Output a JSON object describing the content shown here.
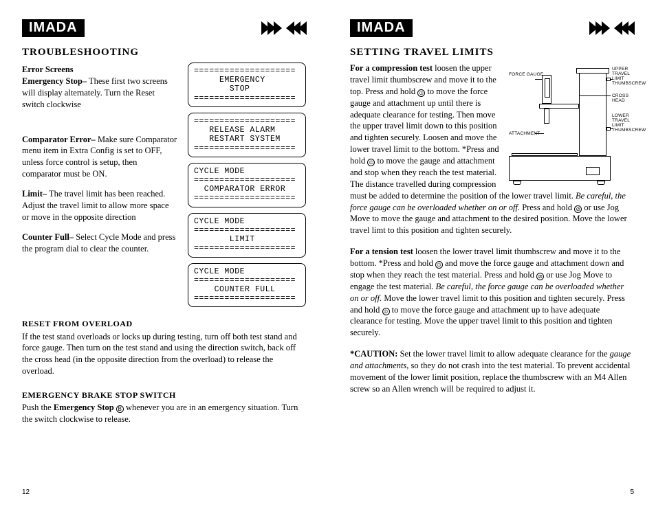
{
  "brand": "IMADA",
  "left": {
    "h1": "TROUBLESHOOTING",
    "h2": "Error Screens",
    "emergency": {
      "label": "Emergency Stop–",
      "text": " These first two screens will display alternately. Turn the Reset switch clockwise"
    },
    "comparator": {
      "label": "Comparator Error–",
      "text": " Make sure Comparator menu item in Extra Config is set to OFF, unless force control is setup, then comparator must be ON."
    },
    "limit": {
      "label": "Limit–",
      "text": " The travel limit has been reached. Adjust the travel limit to allow more space or move in the opposite direction"
    },
    "counter": {
      "label": "Counter Full–",
      "text": " Select Cycle Mode and press the program dial to clear the counter."
    },
    "lcd": [
      [
        "====================",
        "     EMERGENCY",
        "       STOP",
        "===================="
      ],
      [
        "====================",
        "   RELEASE ALARM",
        "   RESTART SYSTEM",
        "===================="
      ],
      [
        "CYCLE MODE",
        "====================",
        "  COMPARATOR ERROR",
        "===================="
      ],
      [
        "CYCLE MODE",
        "====================",
        "       LIMIT",
        "===================="
      ],
      [
        "CYCLE MODE",
        "====================",
        "    COUNTER FULL",
        "===================="
      ]
    ],
    "reset_h": "RESET FROM OVERLOAD",
    "reset_t": "If the test stand overloads or locks up during testing, turn off both test stand and force gauge. Then turn on the test stand and using the direction switch, back off the cross head (in the opposite direction from the overload) to release the overload.",
    "ebrake_h": "EMERGENCY BRAKE STOP SWITCH",
    "ebrake_pre": "Push the ",
    "ebrake_bold": "Emergency Stop ",
    "ebrake_sym": "B",
    "ebrake_post": " whenever you are in an emergency situation.  Turn the switch clockwise to release.",
    "pagenum": "12"
  },
  "right": {
    "h1": "SETTING TRAVEL LIMITS",
    "comp_h": "For a compression test",
    "comp_p1a": "loosen the upper travel limit thumbscrew and move it to the top. Press and hold ",
    "sym_up": "⦶",
    "comp_p1b": " to move the force gauge and attachment up until there is adequate clearance for testing. Then move the upper travel limit down to this position and tighten securely. Loosen",
    "comp_p2a": "and move the lower travel limit to the bottom. *Press and hold ",
    "sym_dn": "⦶",
    "comp_p2b": " to move the gauge and attachment and stop when they reach the test material. The distance travelled during compression must be added to determine the position of the lower travel limit. ",
    "comp_it1": "Be careful, the force gauge can be overloaded whether on or off.",
    "comp_p2c": " Press and hold ",
    "sym_v": "⊘",
    "comp_p2d": " or use Jog Move to move the gauge and attachment to the desired position. Move the lower travel limt to this position and tighten securely.",
    "tens_bold": "For a tension test",
    "tens_a": " loosen the lower travel limit thumbscrew and move it to the bottom. *Press and hold ",
    "tens_b": " and move the force gauge and attachment down and stop when they reach the test material. Press and hold ",
    "tens_c": " or use Jog Move to engage the test material. ",
    "tens_it": "Be careful, the force gauge can be overloaded whether on or off.",
    "tens_d": " Move the lower travel limit to this position and tighten securely. Press and hold ",
    "tens_e": " to move the force gauge and attachment up to have adequate clearance for testing. Move the upper travel limit to this position and tighten securely.",
    "caut_bold": "*CAUTION:",
    "caut_a": " Set the lower travel limit to allow adequate clearance for the ",
    "caut_it": "gauge and attachments,",
    "caut_b": " so they do not crash into the test material. To prevent accidental movement of the lower limit position, replace the thumbscrew with an M4 Allen screw so an Allen wrench will be required to adjust it.",
    "labels": {
      "fg": "FORCE GAUGE",
      "ut": "UPPER TRAVEL LIMIT THUMBSCREW",
      "ch": "CROSS HEAD",
      "lt": "LOWER TRAVEL LIMIT THUMBSCREW",
      "at": "ATTACHMENT"
    },
    "pagenum": "5"
  }
}
